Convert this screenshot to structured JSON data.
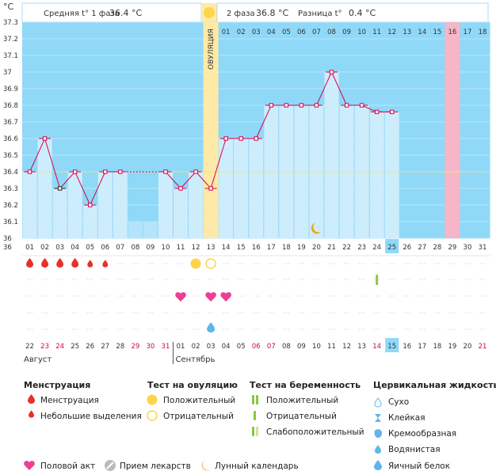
{
  "chart_data": {
    "type": "line",
    "title": "",
    "unit_label": "°C",
    "ylim": [
      36,
      37.3
    ],
    "y_ticks": [
      "37.3",
      "37.2",
      "37.1",
      "37",
      "36.9",
      "36.8",
      "36.7",
      "36.6",
      "36.5",
      "36.4",
      "36.3",
      "36.2",
      "36.1",
      "36"
    ],
    "header": {
      "phase1_text": "Средняя t° 1 фаза",
      "phase1_value": "36.4 °C",
      "phase2_text": "2 фаза",
      "phase2_value": "36.8 °C",
      "diff_text": "Разница t°",
      "diff_value": "0.4 °C"
    },
    "ovulation_label": "ОВУЛЯЦИЯ",
    "ovulation_day_index": 12,
    "top_cycle_labels": [
      "01",
      "02",
      "03",
      "04",
      "05",
      "06",
      "07",
      "08",
      "09",
      "10",
      "11",
      "12",
      "13",
      "14",
      "15",
      "16",
      "17",
      "18"
    ],
    "highlight_top_index": 15,
    "cycle_days": [
      "01",
      "02",
      "03",
      "04",
      "05",
      "06",
      "07",
      "08",
      "09",
      "10",
      "11",
      "12",
      "13",
      "14",
      "15",
      "16",
      "17",
      "18",
      "19",
      "20",
      "21",
      "22",
      "23",
      "24",
      "25",
      "26",
      "27",
      "28",
      "29",
      "30",
      "31"
    ],
    "current_cycle_index": 24,
    "cycle_day_pink_index": 28,
    "temperatures": [
      36.4,
      36.6,
      36.3,
      36.4,
      36.2,
      36.4,
      36.4,
      null,
      null,
      36.4,
      36.3,
      36.4,
      36.3,
      36.6,
      36.6,
      36.6,
      36.8,
      36.8,
      36.8,
      36.8,
      37.0,
      36.8,
      36.8,
      36.76,
      36.76,
      null,
      null,
      null,
      null,
      null,
      null
    ],
    "dotted_gap": [
      6,
      9
    ],
    "low_bar_indices": [
      7,
      8
    ],
    "marked_point_index": 2,
    "coverline": 36.4,
    "moon_index": 19,
    "calendar_dates": [
      "22",
      "23",
      "24",
      "25",
      "26",
      "27",
      "28",
      "29",
      "30",
      "31",
      "01",
      "02",
      "03",
      "04",
      "05",
      "06",
      "07",
      "08",
      "09",
      "10",
      "11",
      "12",
      "13",
      "14",
      "15",
      "16",
      "17",
      "18",
      "19",
      "20",
      "21"
    ],
    "calendar_red_indices": [
      1,
      2,
      7,
      8,
      9,
      15,
      16,
      23,
      30
    ],
    "calendar_today_index": 24,
    "month_left": "Август",
    "month_right": "Сентябрь",
    "month_split_index": 10,
    "marker_rows": {
      "menstruation_big": [
        0,
        1,
        2,
        3
      ],
      "menstruation_small": [
        4,
        5
      ],
      "ovulation_test_positive": [
        11
      ],
      "ovulation_test_negative": [
        12
      ],
      "pregnancy_test_positive": [
        23
      ],
      "intercourse": [
        10,
        12,
        13
      ],
      "cervical_egg_white": [
        12
      ]
    }
  },
  "legend": {
    "menstruation": {
      "title": "Менструация",
      "items": [
        "Менструация",
        "Небольшие выделения"
      ]
    },
    "ovulation_test": {
      "title": "Тест на овуляцию",
      "items": [
        "Положительный",
        "Отрицательный"
      ]
    },
    "pregnancy_test": {
      "title": "Тест на беременность",
      "items": [
        "Положительный",
        "Отрицательный",
        "Слабоположительный"
      ]
    },
    "cervical": {
      "title": "Цервикальная жидкость",
      "items": [
        "Сухо",
        "Клейкая",
        "Кремообразная",
        "Водянистая",
        "Яичный белок"
      ]
    },
    "bottom": [
      "Половой акт",
      "Прием лекарств",
      "Лунный календарь"
    ]
  },
  "colors": {
    "plot_bg": "#8fd8f8",
    "bar": "#ceedfc",
    "bar_low": "#b4e4fa",
    "ovulation_band": "#fdeaa8",
    "pink_col": "#f6b6c8",
    "line": "#d9004c",
    "blood": "#e8302b",
    "heart": "#ec3f96",
    "sun": "#fdd44a",
    "drop": "#5fb6ea",
    "pregnancy": "#8cc63f",
    "coverline": "#f4e27a",
    "red_text": "#d9004c",
    "moon": "#f4a31a"
  }
}
